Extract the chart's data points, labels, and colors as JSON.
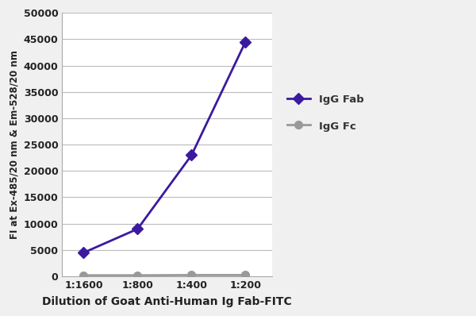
{
  "x_labels": [
    "1:1600",
    "1:800",
    "1:400",
    "1:200"
  ],
  "x_values": [
    1,
    2,
    3,
    4
  ],
  "igg_fab": [
    4500,
    9000,
    23000,
    44500
  ],
  "igg_fc": [
    200,
    200,
    250,
    250
  ],
  "fab_color": "#3b1a9e",
  "fc_color": "#999999",
  "fab_label": "IgG Fab",
  "fc_label": "IgG Fc",
  "xlabel": "Dilution of Goat Anti-Human Ig Fab-FITC",
  "ylabel": "FI at Ex-485/20 nm & Em-528/20 nm",
  "ylim": [
    0,
    50000
  ],
  "yticks": [
    0,
    5000,
    10000,
    15000,
    20000,
    25000,
    30000,
    35000,
    40000,
    45000,
    50000
  ],
  "ytick_labels": [
    "0",
    "5000",
    "10000",
    "15000",
    "20000",
    "25000",
    "30000",
    "35000",
    "40000",
    "45000",
    "50000"
  ],
  "background_color": "#f0f0f0",
  "plot_bg_color": "#ffffff",
  "grid_color": "#bbbbbb",
  "marker_size": 7,
  "line_width": 2.0
}
